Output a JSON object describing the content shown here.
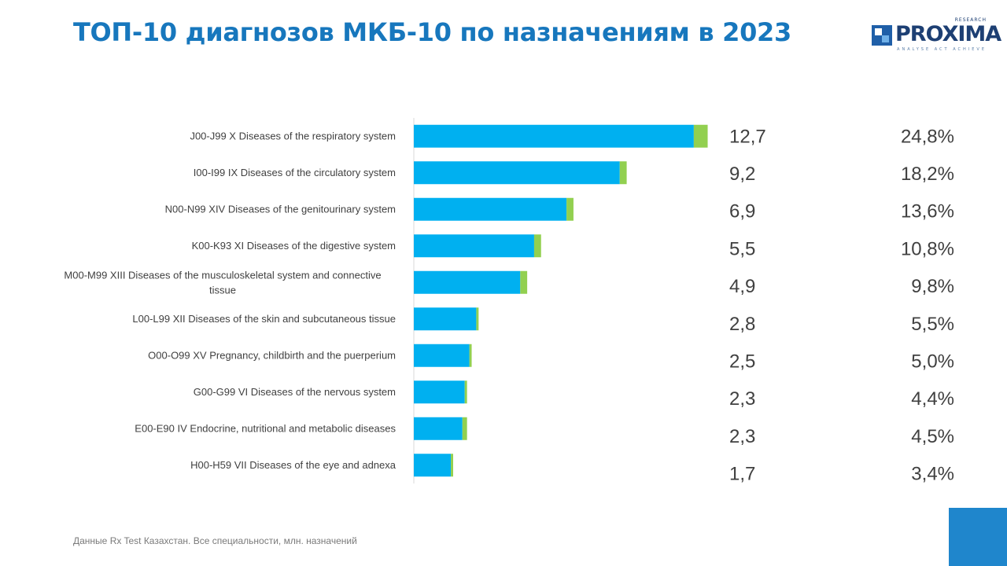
{
  "title": "ТОП-10 диагнозов МКБ-10 по назначениям в 2023",
  "logo": {
    "text": "PROXIMA",
    "superscript": "RESEARCH",
    "tagline": "ANALYSE ACT ACHIEVE"
  },
  "footnote": "Данные Rx Test Казахстан.  Все специальности, млн. назначений",
  "colors": {
    "title": "#1777bd",
    "bar_main": "#00b0f0",
    "bar_secondary": "#92d050",
    "corner": "#1f86cc"
  },
  "chart_data": {
    "type": "bar",
    "orientation": "horizontal",
    "stacked": true,
    "categories": [
      "J00-J99 X Diseases of the respiratory system",
      "I00-I99 IX Diseases of the circulatory system",
      "N00-N99 XIV Diseases of the genitourinary system",
      "K00-K93 XI Diseases of the digestive system",
      "M00-M99 XIII Diseases of the musculoskeletal system and connective tissue",
      "L00-L99 XII Diseases of the skin and subcutaneous tissue",
      "O00-O99 XV Pregnancy, childbirth and the puerperium",
      "G00-G99 VI Diseases of the nervous system",
      "E00-E90 IV Endocrine, nutritional and metabolic diseases",
      "H00-H59 VII Diseases of the eye and adnexa"
    ],
    "series": [
      {
        "values": [
          12.1,
          8.9,
          6.6,
          5.2,
          4.6,
          2.7,
          2.4,
          2.2,
          2.1,
          1.6
        ],
        "color": "#00b0f0"
      },
      {
        "values": [
          0.6,
          0.3,
          0.3,
          0.3,
          0.3,
          0.1,
          0.1,
          0.1,
          0.2,
          0.1
        ],
        "color": "#92d050"
      }
    ],
    "totals": [
      "12,7",
      "9,2",
      "6,9",
      "5,5",
      "4,9",
      "2,8",
      "2,5",
      "2,3",
      "2,3",
      "1,7"
    ],
    "shares": [
      "24,8%",
      "18,2%",
      "13,6%",
      "10,8%",
      "9,8%",
      "5,5%",
      "5,0%",
      "4,4%",
      "4,5%",
      "3,4%"
    ],
    "xlim": [
      0,
      15.3
    ],
    "grid": false,
    "legend": "none"
  }
}
